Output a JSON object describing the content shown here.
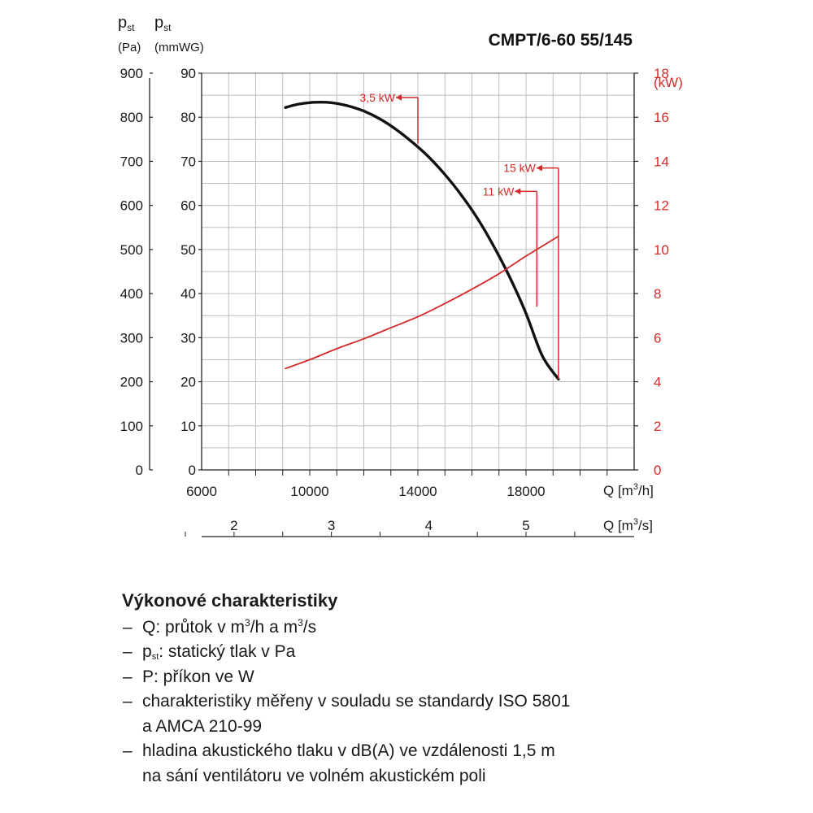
{
  "chart_data": {
    "type": "line",
    "title": "CMPT/6-60 55/145",
    "left_axis_pa": {
      "symbol": "p",
      "subscript": "st",
      "unit": "(Pa)",
      "ticks": [
        0,
        100,
        200,
        300,
        400,
        500,
        600,
        700,
        800,
        900
      ],
      "range": [
        0,
        900
      ]
    },
    "left_axis_mmwg": {
      "symbol": "p",
      "subscript": "st",
      "unit": "(mmWG)",
      "ticks": [
        0,
        10,
        20,
        30,
        40,
        50,
        60,
        70,
        80,
        90
      ],
      "range": [
        0,
        90
      ]
    },
    "right_axis_kw": {
      "unit": "(kW)",
      "color": "#d42a2a",
      "ticks": [
        0,
        2,
        4,
        6,
        8,
        10,
        12,
        14,
        16,
        18
      ],
      "range": [
        0,
        18
      ]
    },
    "x_axis_m3h": {
      "label_prefix": "Q [m",
      "label_sup": "3",
      "label_suffix": "/h]",
      "ticks": [
        6000,
        10000,
        14000,
        18000
      ],
      "range": [
        6000,
        22000
      ]
    },
    "x_axis_m3s": {
      "label_prefix": "Q [m",
      "label_sup": "3",
      "label_suffix": "/s]",
      "ticks": [
        2,
        3,
        4,
        5
      ]
    },
    "grid": true,
    "series": [
      {
        "axis": "left_pa",
        "color": "#111111",
        "x": [
          9100,
          9600,
          10200,
          10800,
          11400,
          12000,
          12600,
          13200,
          13800,
          14400,
          15000,
          15600,
          16200,
          16800,
          17400,
          18000,
          18600,
          19200
        ],
        "y": [
          822,
          830,
          834,
          833,
          826,
          814,
          796,
          772,
          743,
          710,
          670,
          624,
          571,
          508,
          437,
          355,
          259,
          206
        ]
      },
      {
        "axis": "right_kw",
        "color": "#d42a2a",
        "x": [
          9100,
          10000,
          11000,
          12000,
          13000,
          14000,
          15000,
          16000,
          17000,
          18000,
          19200
        ],
        "y": [
          4.6,
          5.0,
          5.5,
          5.95,
          6.45,
          6.95,
          7.55,
          8.2,
          8.9,
          9.7,
          10.6
        ]
      }
    ],
    "annotations": [
      {
        "text": "3,5 kW",
        "x": 14000,
        "y_top": 845,
        "y_bottom": 740
      },
      {
        "text": "15 kW",
        "x": 19200,
        "y_top": 685,
        "y_bottom": 206
      },
      {
        "text": "11 kW",
        "x": 18400,
        "y_top": 632,
        "y_bottom": 370
      }
    ]
  },
  "notes": {
    "title": "Výkonové charakteristiky",
    "dash": "–",
    "q": {
      "pre": "Q: průtok v m",
      "sup": "3",
      "mid": "/h a m",
      "sup2": "3",
      "post": "/s"
    },
    "pst": {
      "main": "p",
      "sub": "st",
      "post": ": statický tlak v Pa"
    },
    "p": "P: příkon ve W",
    "iso_1": "charakteristiky měřeny v souladu se standardy ISO 5801",
    "iso_2": "a AMCA 210-99",
    "noise_1": "hladina akustického tlaku v dB(A) ve vzdálenosti 1,5 m",
    "noise_2": "na sání ventilátoru ve volném akustickém poli"
  }
}
